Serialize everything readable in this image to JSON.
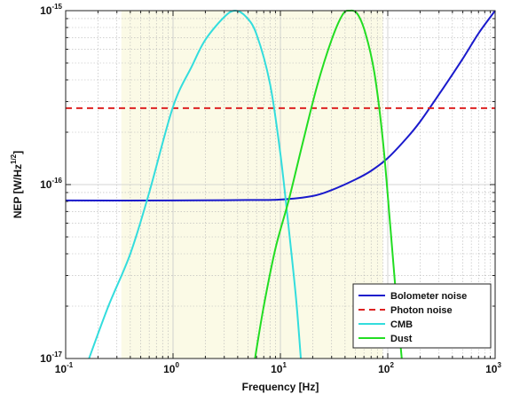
{
  "chart_data": {
    "type": "line",
    "title": "",
    "xlabel": "Frequency [Hz]",
    "ylabel": "NEP [W/Hz",
    "ylabel_exp": "1/2",
    "ylabel_tail": "]",
    "xscale": "log",
    "yscale": "log",
    "xlim": [
      0.1,
      1000
    ],
    "ylim": [
      1e-17,
      1e-15
    ],
    "grid": true,
    "x_ticks": [
      {
        "base": "10",
        "exp": "-1"
      },
      {
        "base": "10",
        "exp": "0"
      },
      {
        "base": "10",
        "exp": "1"
      },
      {
        "base": "10",
        "exp": "2"
      },
      {
        "base": "10",
        "exp": "3"
      }
    ],
    "y_ticks": [
      {
        "base": "10",
        "exp": "-17"
      },
      {
        "base": "10",
        "exp": "-16"
      },
      {
        "base": "10",
        "exp": "-15"
      }
    ],
    "shaded_band": {
      "x_start": 0.33,
      "x_end": 90,
      "color": "#fbfae6"
    },
    "legend": {
      "position": "bottom-right"
    },
    "series": [
      {
        "name": "Bolometer noise",
        "color": "#1a1acc",
        "style": "solid",
        "points": [
          [
            0.1,
            8.1e-17
          ],
          [
            1,
            8.1e-17
          ],
          [
            5,
            8.15e-17
          ],
          [
            10,
            8.2e-17
          ],
          [
            20,
            8.6e-17
          ],
          [
            30,
            9.3e-17
          ],
          [
            50,
            1.07e-16
          ],
          [
            70,
            1.2e-16
          ],
          [
            100,
            1.42e-16
          ],
          [
            150,
            1.85e-16
          ],
          [
            200,
            2.3e-16
          ],
          [
            300,
            3.3e-16
          ],
          [
            500,
            5.3e-16
          ],
          [
            700,
            7.4e-16
          ],
          [
            1000,
            1e-15
          ]
        ]
      },
      {
        "name": "Photon noise",
        "color": "#dd2222",
        "style": "dashed",
        "points": [
          [
            0.1,
            2.75e-16
          ],
          [
            1000,
            2.75e-16
          ]
        ]
      },
      {
        "name": "CMB",
        "color": "#33dddd",
        "style": "solid",
        "points": [
          [
            0.165,
            1e-17
          ],
          [
            0.25,
            2e-17
          ],
          [
            0.4,
            4e-17
          ],
          [
            0.6,
            9e-17
          ],
          [
            1.0,
            2.8e-16
          ],
          [
            1.5,
            4.8e-16
          ],
          [
            2.0,
            6.8e-16
          ],
          [
            3.0,
            9.2e-16
          ],
          [
            3.8,
            1e-15
          ],
          [
            4.8,
            9.2e-16
          ],
          [
            6.0,
            7.3e-16
          ],
          [
            8.0,
            3.8e-16
          ],
          [
            10.0,
            1.5e-16
          ],
          [
            12.0,
            5.5e-17
          ],
          [
            14.0,
            2.2e-17
          ],
          [
            15.5,
            1e-17
          ]
        ]
      },
      {
        "name": "Dust",
        "color": "#22dd22",
        "style": "solid",
        "points": [
          [
            5.8,
            1e-17
          ],
          [
            7.0,
            2e-17
          ],
          [
            9.0,
            4.3e-17
          ],
          [
            12.0,
            8.2e-17
          ],
          [
            16.0,
            1.7e-16
          ],
          [
            22.0,
            3.7e-16
          ],
          [
            30.0,
            6.8e-16
          ],
          [
            38.0,
            9.5e-16
          ],
          [
            44.0,
            1e-15
          ],
          [
            52.0,
            9.6e-16
          ],
          [
            62.0,
            7.4e-16
          ],
          [
            75.0,
            4.4e-16
          ],
          [
            90.0,
            1.8e-16
          ],
          [
            105.0,
            6e-17
          ],
          [
            120.0,
            2.2e-17
          ],
          [
            135.0,
            1e-17
          ]
        ]
      }
    ]
  }
}
